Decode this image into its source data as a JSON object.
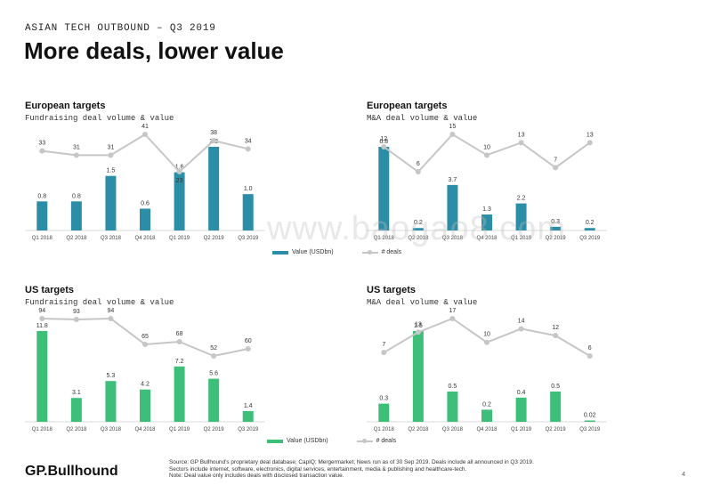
{
  "header": {
    "kicker": "ASIAN TECH OUTBOUND – Q3 2019",
    "title": "More deals, lower value"
  },
  "colors": {
    "teal": "#2b8ea6",
    "green": "#3dbf7a",
    "line": "#c6c6c6"
  },
  "legend": {
    "value_label": "Value (USDbn)",
    "deals_label": "# deals"
  },
  "chart_data": [
    {
      "type": "bar",
      "id": "eu-fundraising",
      "title": "European targets",
      "subtitle": "Fundraising deal volume & value",
      "categories": [
        "Q1 2018",
        "Q2 2018",
        "Q3 2018",
        "Q4 2018",
        "Q1 2019",
        "Q2 2019",
        "Q3 2019"
      ],
      "series": [
        {
          "name": "Value (USDbn)",
          "values": [
            0.8,
            0.8,
            1.5,
            0.6,
            1.6,
            2.3,
            1.0
          ],
          "labels": [
            "0.8",
            "0.8",
            "1.5",
            "0.6",
            "1.6",
            "2.3",
            "1.0"
          ],
          "color": "#2b8ea6"
        },
        {
          "name": "# deals",
          "values": [
            33,
            31,
            31,
            41,
            23,
            38,
            34
          ],
          "labels": [
            "33",
            "31",
            "31",
            "41",
            "23",
            "38",
            "34"
          ],
          "color": "#c6c6c6"
        }
      ]
    },
    {
      "type": "bar",
      "id": "eu-ma",
      "title": "European targets",
      "subtitle": "M&A deal volume & value",
      "categories": [
        "Q1 2018",
        "Q2 2018",
        "Q3 2018",
        "Q4 2018",
        "Q1 2019",
        "Q2 2019",
        "Q3 2019"
      ],
      "series": [
        {
          "name": "Value (USDbn)",
          "values": [
            6.8,
            0.2,
            3.7,
            1.3,
            2.2,
            0.3,
            0.2
          ],
          "labels": [
            "6.8",
            "0.2",
            "3.7",
            "1.3",
            "2.2",
            "0.3",
            "0.2"
          ],
          "color": "#2b8ea6"
        },
        {
          "name": "# deals",
          "values": [
            12,
            6,
            15,
            10,
            13,
            7,
            13
          ],
          "labels": [
            "12",
            "6",
            "15",
            "10",
            "13",
            "7",
            "13"
          ],
          "color": "#c6c6c6"
        }
      ]
    },
    {
      "type": "bar",
      "id": "us-fundraising",
      "title": "US targets",
      "subtitle": "Fundraising deal volume & value",
      "categories": [
        "Q1 2018",
        "Q2 2018",
        "Q3 2018",
        "Q4 2018",
        "Q1 2019",
        "Q2 2019",
        "Q3 2019"
      ],
      "series": [
        {
          "name": "Value (USDbn)",
          "values": [
            11.8,
            3.1,
            5.3,
            4.2,
            7.2,
            5.6,
            1.4
          ],
          "labels": [
            "11.8",
            "3.1",
            "5.3",
            "4.2",
            "7.2",
            "5.6",
            "1.4"
          ],
          "color": "#3dbf7a"
        },
        {
          "name": "# deals",
          "values": [
            94,
            93,
            94,
            65,
            68,
            52,
            60
          ],
          "labels": [
            "94",
            "93",
            "94",
            "65",
            "68",
            "52",
            "60"
          ],
          "color": "#c6c6c6"
        }
      ]
    },
    {
      "type": "bar",
      "id": "us-ma",
      "title": "US targets",
      "subtitle": "M&A deal volume & value",
      "categories": [
        "Q1 2018",
        "Q2 2018",
        "Q3 2018",
        "Q4 2018",
        "Q1 2019",
        "Q2 2019",
        "Q3 2019"
      ],
      "series": [
        {
          "name": "Value (USDbn)",
          "values": [
            0.3,
            1.5,
            0.5,
            0.2,
            0.4,
            0.5,
            0.02
          ],
          "labels": [
            "0.3",
            "1.5",
            "0.5",
            "0.2",
            "0.4",
            "0.5",
            "0.02"
          ],
          "color": "#3dbf7a"
        },
        {
          "name": "# deals",
          "values": [
            7,
            13,
            17,
            10,
            14,
            12,
            6
          ],
          "labels": [
            "7",
            "13",
            "17",
            "10",
            "14",
            "12",
            "6"
          ],
          "color": "#c6c6c6"
        }
      ]
    }
  ],
  "footer": {
    "logo": "GP.Bullhound",
    "source": "Source: GP Bullhound’s proprietary deal database; CapIQ; Mergermarket; News run as of 30 Sep 2019. Deals include all announced in Q3 2019. Sectors include internet, software, electronics, digital services, entertainment, media & publishing and healthcare-tech.",
    "note": "Note: Deal value only includes deals with disclosed transaction value.",
    "page": "4",
    "watermark": "www.baogao8.com"
  }
}
